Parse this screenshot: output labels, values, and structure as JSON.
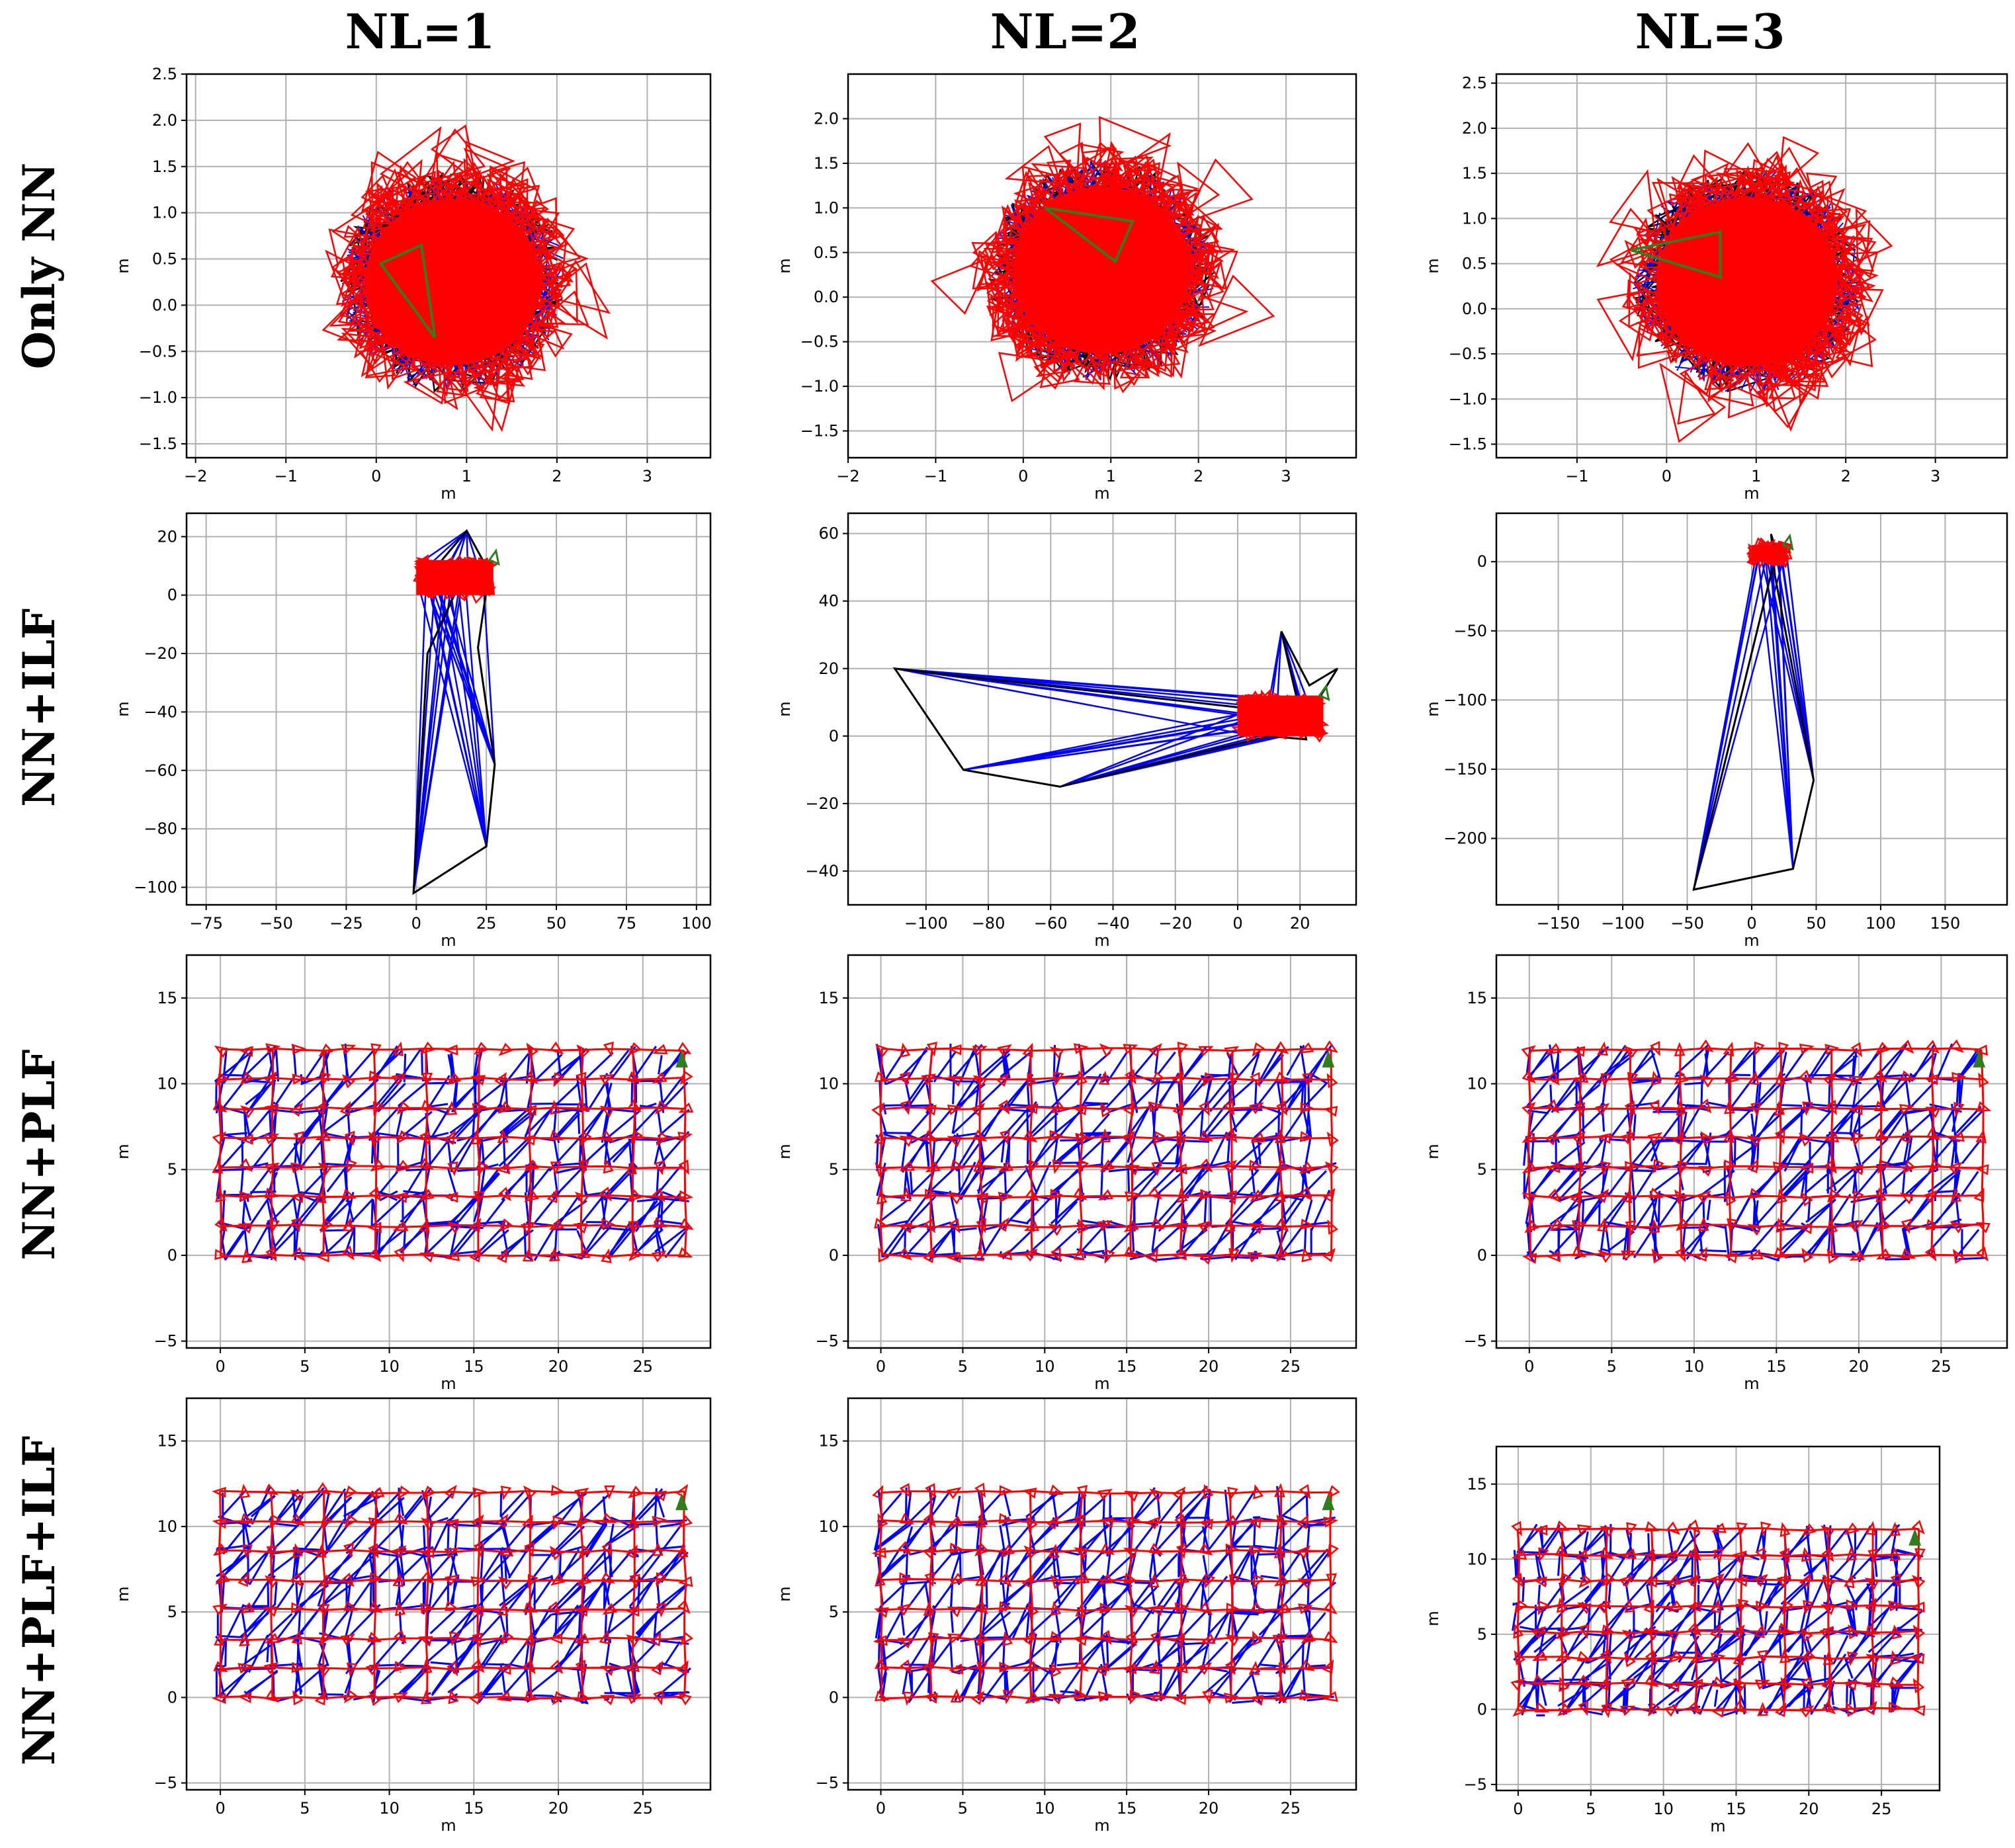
{
  "figure": {
    "column_titles": [
      "NL=1",
      "NL=2",
      "NL=3"
    ],
    "row_titles": [
      "Only NN",
      "NN+ILF",
      "NN+PLF",
      "NN+PLF+ILF"
    ]
  },
  "colors": {
    "odometry": "#000000",
    "loop_closures": "#0000ff",
    "pose_triangles": "#ff0000",
    "start_marker": "#2e7d1f",
    "grid": "#b0b0b0"
  },
  "chart_data": [
    {
      "row": 0,
      "col": 0,
      "type": "scatter",
      "style": "cloud",
      "xlabel": "m",
      "ylabel": "m",
      "xlim": [
        -2.1,
        3.7
      ],
      "ylim": [
        -1.65,
        2.5
      ],
      "xticks": [
        -2,
        -1,
        0,
        1,
        2,
        3
      ],
      "yticks": [
        -1.5,
        -1.0,
        -0.5,
        0.0,
        0.5,
        1.0,
        1.5,
        2.0,
        2.5
      ],
      "cloud_center": [
        0.85,
        0.25
      ],
      "cloud_radius": [
        1.25,
        1.2
      ],
      "start_triangle": [
        [
          0.05,
          0.45
        ],
        [
          0.5,
          0.65
        ],
        [
          0.65,
          -0.35
        ]
      ]
    },
    {
      "row": 0,
      "col": 1,
      "type": "scatter",
      "style": "cloud",
      "xlabel": "m",
      "ylabel": "m",
      "xlim": [
        -2.0,
        3.8
      ],
      "ylim": [
        -1.8,
        2.5
      ],
      "xticks": [
        -2,
        -1,
        0,
        1,
        2,
        3
      ],
      "yticks": [
        -1.5,
        -1.0,
        -0.5,
        0.0,
        0.5,
        1.0,
        1.5,
        2.0
      ],
      "cloud_center": [
        0.9,
        0.3
      ],
      "cloud_radius": [
        1.3,
        1.25
      ],
      "start_triangle": [
        [
          0.25,
          1.0
        ],
        [
          1.25,
          0.85
        ],
        [
          1.05,
          0.4
        ]
      ]
    },
    {
      "row": 0,
      "col": 2,
      "type": "scatter",
      "style": "cloud",
      "xlabel": "m",
      "ylabel": "m",
      "xlim": [
        -1.9,
        3.8
      ],
      "ylim": [
        -1.65,
        2.6
      ],
      "xticks": [
        -1,
        0,
        1,
        2,
        3
      ],
      "yticks": [
        -1.5,
        -1.0,
        -0.5,
        0.0,
        0.5,
        1.0,
        1.5,
        2.0,
        2.5
      ],
      "cloud_center": [
        0.9,
        0.3
      ],
      "cloud_radius": [
        1.3,
        1.25
      ],
      "start_triangle": [
        [
          -0.4,
          0.65
        ],
        [
          0.6,
          0.85
        ],
        [
          0.6,
          0.35
        ]
      ]
    },
    {
      "row": 1,
      "col": 0,
      "type": "scatter",
      "style": "outlier",
      "xlabel": "m",
      "ylabel": "m",
      "xlim": [
        -82,
        105
      ],
      "ylim": [
        -106,
        28
      ],
      "xticks": [
        -75,
        -50,
        -25,
        0,
        25,
        50,
        75,
        100
      ],
      "yticks": [
        -100,
        -80,
        -60,
        -40,
        -20,
        0,
        20
      ],
      "cluster_box": [
        0,
        27.5,
        0,
        12
      ],
      "black_path": [
        [
          3,
          5
        ],
        [
          18,
          22
        ],
        [
          26,
          8
        ],
        [
          22,
          -18
        ],
        [
          28,
          -58
        ],
        [
          25,
          -86
        ],
        [
          -1,
          -102
        ],
        [
          4,
          -20
        ],
        [
          15,
          3
        ]
      ],
      "blue_anchors": [
        [
          25,
          -86
        ],
        [
          28,
          -58
        ],
        [
          -1,
          -102
        ],
        [
          18,
          22
        ]
      ]
    },
    {
      "row": 1,
      "col": 1,
      "type": "scatter",
      "style": "outlier",
      "xlabel": "m",
      "ylabel": "m",
      "xlim": [
        -125,
        38
      ],
      "ylim": [
        -50,
        66
      ],
      "xticks": [
        -100,
        -80,
        -60,
        -40,
        -20,
        0,
        20
      ],
      "yticks": [
        -40,
        -20,
        0,
        20,
        40,
        60
      ],
      "cluster_box": [
        0,
        27.5,
        0,
        12
      ],
      "black_path": [
        [
          5,
          8
        ],
        [
          -110,
          20
        ],
        [
          -88,
          -10
        ],
        [
          -57,
          -15
        ],
        [
          10,
          0
        ],
        [
          22,
          -1
        ],
        [
          14,
          31
        ],
        [
          23,
          15
        ],
        [
          32,
          20
        ],
        [
          20,
          2
        ]
      ],
      "blue_anchors": [
        [
          -110,
          20
        ],
        [
          -88,
          -10
        ],
        [
          -57,
          -15
        ],
        [
          14,
          31
        ]
      ]
    },
    {
      "row": 1,
      "col": 2,
      "type": "scatter",
      "style": "outlier",
      "xlabel": "m",
      "ylabel": "m",
      "xlim": [
        -198,
        198
      ],
      "ylim": [
        -248,
        35
      ],
      "xticks": [
        -150,
        -100,
        -50,
        0,
        50,
        100,
        150
      ],
      "yticks": [
        -200,
        -150,
        -100,
        -50,
        0
      ],
      "cluster_box": [
        0,
        27.5,
        0,
        12
      ],
      "black_path": [
        [
          20,
          5
        ],
        [
          15,
          20
        ],
        [
          18,
          -10
        ],
        [
          48,
          -158
        ],
        [
          32,
          -222
        ],
        [
          -45,
          -237
        ],
        [
          16,
          -5
        ]
      ],
      "blue_anchors": [
        [
          48,
          -158
        ],
        [
          32,
          -222
        ],
        [
          -45,
          -237
        ]
      ]
    },
    {
      "row": 2,
      "col": 0,
      "type": "scatter",
      "style": "grid",
      "xlabel": "m",
      "ylabel": "m",
      "xlim": [
        -2,
        29
      ],
      "ylim": [
        -5.4,
        17.5
      ],
      "xticks": [
        0,
        5,
        10,
        15,
        20,
        25
      ],
      "yticks": [
        -5,
        0,
        5,
        10,
        15
      ],
      "grid_x_range": [
        0,
        27.5
      ],
      "grid_y_range": [
        0,
        12
      ],
      "grid_nx": 19,
      "grid_ny": 8,
      "start_point": [
        27.3,
        11.3
      ]
    },
    {
      "row": 2,
      "col": 1,
      "type": "scatter",
      "style": "grid",
      "xlabel": "m",
      "ylabel": "m",
      "xlim": [
        -2,
        29
      ],
      "ylim": [
        -5.4,
        17.5
      ],
      "xticks": [
        0,
        5,
        10,
        15,
        20,
        25
      ],
      "yticks": [
        -5,
        0,
        5,
        10,
        15
      ],
      "grid_x_range": [
        0,
        27.5
      ],
      "grid_y_range": [
        0,
        12
      ],
      "grid_nx": 19,
      "grid_ny": 8,
      "start_point": [
        27.3,
        11.3
      ]
    },
    {
      "row": 2,
      "col": 2,
      "type": "scatter",
      "style": "grid",
      "xlabel": "m",
      "ylabel": "m",
      "xlim": [
        -2,
        29
      ],
      "ylim": [
        -5.4,
        17.5
      ],
      "xticks": [
        0,
        5,
        10,
        15,
        20,
        25
      ],
      "yticks": [
        -5,
        0,
        5,
        10,
        15
      ],
      "grid_x_range": [
        0,
        27.5
      ],
      "grid_y_range": [
        0,
        12
      ],
      "grid_nx": 19,
      "grid_ny": 8,
      "start_point": [
        27.3,
        11.3
      ]
    },
    {
      "row": 3,
      "col": 0,
      "type": "scatter",
      "style": "grid",
      "xlabel": "m",
      "ylabel": "m",
      "xlim": [
        -2,
        29
      ],
      "ylim": [
        -5.4,
        17.5
      ],
      "xticks": [
        0,
        5,
        10,
        15,
        20,
        25
      ],
      "yticks": [
        -5,
        0,
        5,
        10,
        15
      ],
      "grid_x_range": [
        0,
        27.5
      ],
      "grid_y_range": [
        0,
        12
      ],
      "grid_nx": 19,
      "grid_ny": 8,
      "start_point": [
        27.3,
        11.3
      ]
    },
    {
      "row": 3,
      "col": 1,
      "type": "scatter",
      "style": "grid",
      "xlabel": "m",
      "ylabel": "m",
      "xlim": [
        -2,
        29
      ],
      "ylim": [
        -5.4,
        17.5
      ],
      "xticks": [
        0,
        5,
        10,
        15,
        20,
        25
      ],
      "yticks": [
        -5,
        0,
        5,
        10,
        15
      ],
      "grid_x_range": [
        0,
        27.5
      ],
      "grid_y_range": [
        0,
        12
      ],
      "grid_nx": 19,
      "grid_ny": 8,
      "start_point": [
        27.3,
        11.3
      ]
    },
    {
      "row": 3,
      "col": 2,
      "type": "scatter",
      "style": "grid",
      "xlabel": "m",
      "ylabel": "m",
      "xlim": [
        -1.5,
        29
      ],
      "ylim": [
        -5.4,
        17.5
      ],
      "xticks": [
        0,
        5,
        10,
        15,
        20,
        25
      ],
      "yticks": [
        -5,
        0,
        5,
        10,
        15
      ],
      "grid_x_range": [
        0,
        27.5
      ],
      "grid_y_range": [
        0,
        12
      ],
      "grid_nx": 19,
      "grid_ny": 8,
      "start_point": [
        27.3,
        11.3
      ]
    }
  ]
}
